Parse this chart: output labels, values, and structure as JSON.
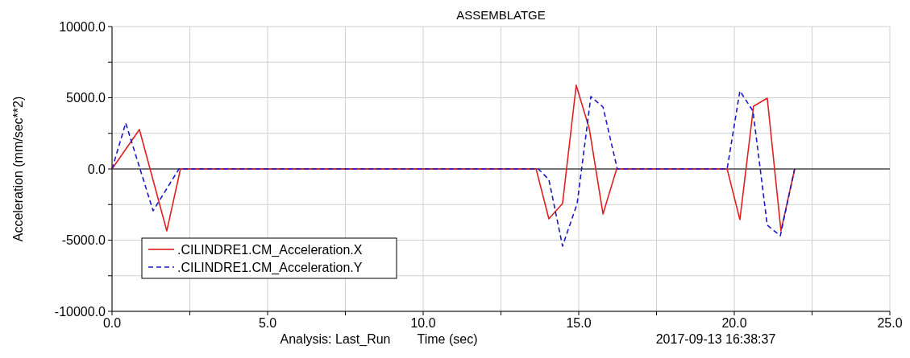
{
  "chart_data": {
    "type": "line",
    "title": "ASSEMBLATGE",
    "xlabel": "Time (sec)",
    "ylabel": "Acceleration (mm/sec**2)",
    "annotations": [
      "Analysis:  Last_Run",
      "2017-09-13 16:38:37"
    ],
    "xlim": [
      0,
      25
    ],
    "xticks": [
      {
        "value": 0,
        "label": "0.0"
      },
      {
        "value": 2.5,
        "label": null
      },
      {
        "value": 5,
        "label": "5.0"
      },
      {
        "value": 7.5,
        "label": null
      },
      {
        "value": 10,
        "label": "10.0"
      },
      {
        "value": 12.5,
        "label": null
      },
      {
        "value": 15,
        "label": "15.0"
      },
      {
        "value": 17.5,
        "label": null
      },
      {
        "value": 20,
        "label": "20.0"
      },
      {
        "value": 22.5,
        "label": null
      },
      {
        "value": 25,
        "label": "25.0"
      }
    ],
    "ylim": [
      -10000,
      10000
    ],
    "yticks": [
      {
        "value": -10000,
        "label": "-10000.0"
      },
      {
        "value": -7500,
        "label": null
      },
      {
        "value": -5000,
        "label": "-5000.0"
      },
      {
        "value": -2500,
        "label": null
      },
      {
        "value": 0,
        "label": "0.0"
      },
      {
        "value": 2500,
        "label": null
      },
      {
        "value": 5000,
        "label": "5000.0"
      },
      {
        "value": 7500,
        "label": null
      },
      {
        "value": 10000,
        "label": "10000.0"
      }
    ],
    "grid": true,
    "legend": "bottom left",
    "ref_lines": [
      {
        "axis": "y",
        "value": 0,
        "color": "#000000"
      }
    ],
    "series": [
      {
        "name": ".CILINDRE1.CM_Acceleration.X",
        "color": "#e02020",
        "line_style": "solid",
        "x": [
          0,
          0.88,
          1.76,
          2.2,
          13.63,
          14.04,
          14.48,
          14.92,
          15.34,
          15.78,
          16.22,
          19.77,
          20.18,
          20.62,
          21.06,
          21.5,
          21.94
        ],
        "values": [
          0,
          2770,
          -4350,
          0,
          0,
          -3500,
          -2430,
          5880,
          2830,
          -3160,
          0,
          0,
          -3560,
          4410,
          4970,
          -4350,
          0
        ]
      },
      {
        "name": ".CILINDRE1.CM_Acceleration.Y",
        "color": "#1a1ac8",
        "line_style": "dashed",
        "x": [
          0,
          0.44,
          1.32,
          2.15,
          13.7,
          14.04,
          14.48,
          14.95,
          15.39,
          15.78,
          16.24,
          19.77,
          20.18,
          20.6,
          21.06,
          21.48,
          21.94
        ],
        "values": [
          0,
          3220,
          -2940,
          0,
          0,
          -740,
          -5420,
          -2430,
          5080,
          4350,
          0,
          0,
          5480,
          4070,
          -3950,
          -4690,
          0
        ]
      }
    ]
  }
}
